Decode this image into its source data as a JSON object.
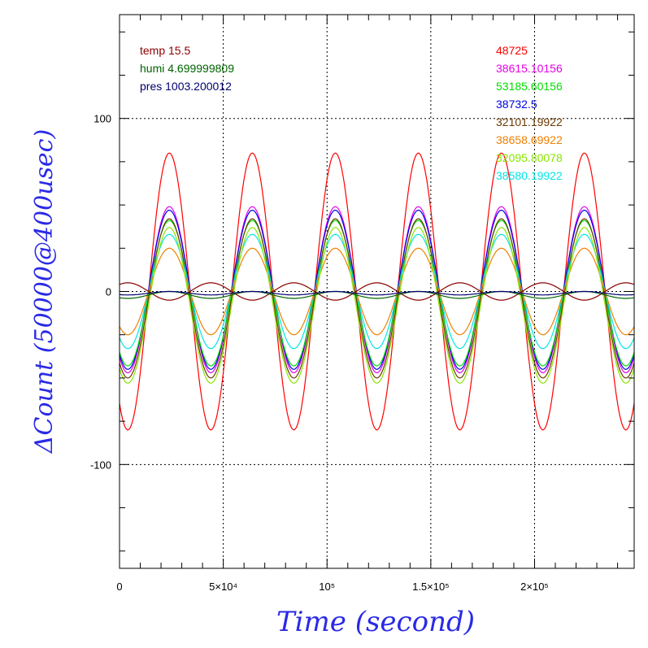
{
  "chart_data": {
    "type": "line",
    "title": "",
    "xlabel": "Time (second)",
    "ylabel": "ΔCount (50000@400usec)",
    "xlim": [
      0,
      248000
    ],
    "ylim": [
      -160,
      160
    ],
    "grid": true,
    "x_ticks": [
      {
        "value": 0,
        "label": "0"
      },
      {
        "value": 50000,
        "label": "5×10⁴"
      },
      {
        "value": 100000,
        "label": "10⁵"
      },
      {
        "value": 150000,
        "label": "1.5×10⁵"
      },
      {
        "value": 200000,
        "label": "2×10⁵"
      }
    ],
    "y_ticks": [
      {
        "value": 100,
        "label": "100"
      },
      {
        "value": 0,
        "label": "0"
      },
      {
        "value": -100,
        "label": "-100"
      }
    ],
    "legend_left": [
      {
        "text": "temp 15.5",
        "color": "#8b0000"
      },
      {
        "text": "humi 4.699999809",
        "color": "#006400"
      },
      {
        "text": "pres 1003.200012",
        "color": "#00006e"
      }
    ],
    "legend_right": [
      {
        "text": "48725",
        "color": "#ff0000"
      },
      {
        "text": "38615.10156",
        "color": "#e600e6"
      },
      {
        "text": "53185.60156",
        "color": "#00dd00"
      },
      {
        "text": "38732.5",
        "color": "#0000e6"
      },
      {
        "text": "32101.19922",
        "color": "#6b3a00"
      },
      {
        "text": "38658.69922",
        "color": "#f08000"
      },
      {
        "text": "32095.80078",
        "color": "#88e600"
      },
      {
        "text": "38580.19922",
        "color": "#00e6e6"
      }
    ],
    "period": 40000,
    "phase_peak_x": 24000,
    "series": [
      {
        "name": "48725",
        "color": "#ff0000",
        "amplitude": 80,
        "offset": 0
      },
      {
        "name": "38615.10156",
        "color": "#e600e6",
        "amplitude": 48,
        "offset": 1
      },
      {
        "name": "38732.5",
        "color": "#0000e6",
        "amplitude": 46,
        "offset": 1
      },
      {
        "name": "53185.60156",
        "color": "#00dd00",
        "amplitude": 42,
        "offset": -1
      },
      {
        "name": "32101.19922",
        "color": "#6b3a00",
        "amplitude": 46,
        "offset": -4
      },
      {
        "name": "38580.19922",
        "color": "#00e6e6",
        "amplitude": 33,
        "offset": 0
      },
      {
        "name": "38658.69922",
        "color": "#f08000",
        "amplitude": 25,
        "offset": 0
      },
      {
        "name": "32095.80078",
        "color": "#88e600",
        "amplitude": 45,
        "offset": -8
      },
      {
        "name": "temp 15.5",
        "color": "#8b0000",
        "amplitude": -5,
        "offset": 0
      },
      {
        "name": "humi 4.699999809",
        "color": "#006400",
        "amplitude": 2,
        "offset": -2
      },
      {
        "name": "pres 1003.200012",
        "color": "#00006e",
        "amplitude": 1,
        "offset": -1
      }
    ]
  }
}
